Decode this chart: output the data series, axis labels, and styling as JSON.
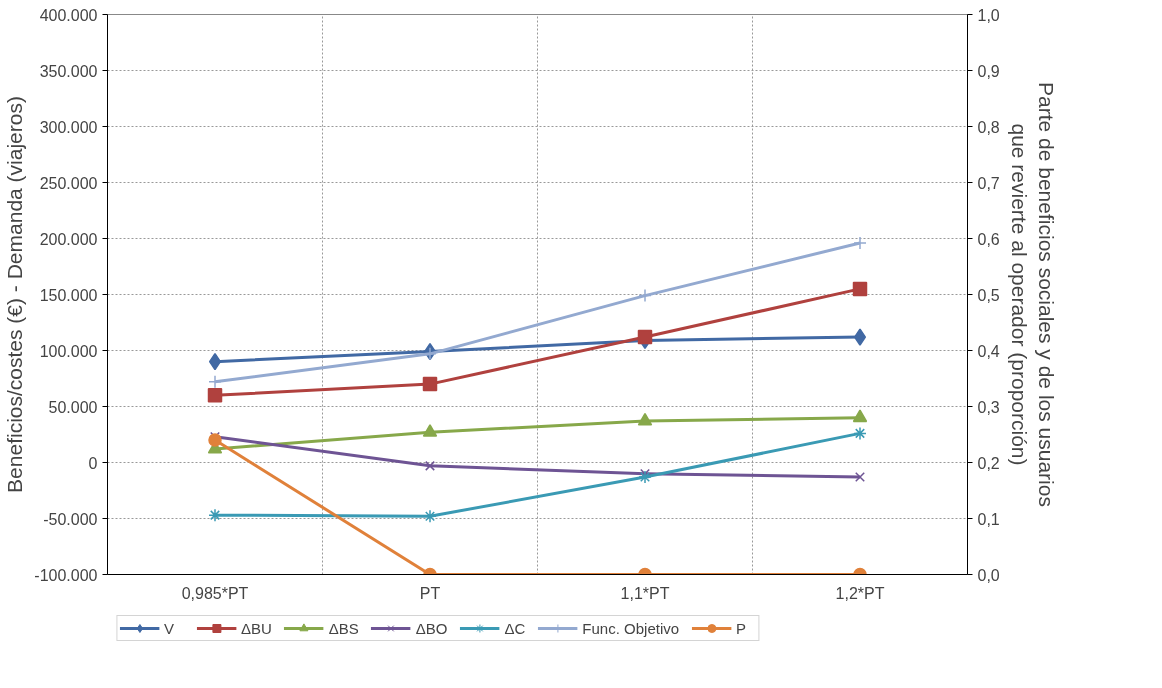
{
  "chart_data": {
    "type": "line",
    "ylabel": "Beneficios/costes (€) - Demanda (viajeros)",
    "y2label": "Parte de beneficios sociales y de los usuarios\nque revierte al operador (proporción)",
    "categories": [
      "0,985*PT",
      "PT",
      "1,1*PT",
      "1,2*PT"
    ],
    "ylim": [
      -100000,
      400000
    ],
    "yticks": [
      {
        "value": -100000,
        "label": "-100.000"
      },
      {
        "value": -50000,
        "label": "-50.000"
      },
      0,
      {
        "value": 50000,
        "label": "50.000"
      },
      {
        "value": 100000,
        "label": "100.000"
      },
      {
        "value": 150000,
        "label": "150.000"
      },
      {
        "value": 200000,
        "label": "200.000"
      },
      {
        "value": 250000,
        "label": "250.000"
      },
      {
        "value": 300000,
        "label": "300.000"
      },
      {
        "value": 350000,
        "label": "350.000"
      },
      {
        "value": 400000,
        "label": "400.000"
      }
    ],
    "y2lim": [
      0,
      1
    ],
    "y2ticks": [
      {
        "value": 0,
        "label": "0,0"
      },
      {
        "value": 0.1,
        "label": "0,1"
      },
      {
        "value": 0.2,
        "label": "0,2"
      },
      {
        "value": 0.3,
        "label": "0,3"
      },
      {
        "value": 0.4,
        "label": "0,4"
      },
      {
        "value": 0.5,
        "label": "0,5"
      },
      {
        "value": 0.6,
        "label": "0,6"
      },
      {
        "value": 0.7,
        "label": "0,7"
      },
      {
        "value": 0.8,
        "label": "0,8"
      },
      {
        "value": 0.9,
        "label": "0,9"
      },
      {
        "value": 1,
        "label": "1,0"
      }
    ],
    "grid": true,
    "legend": "bottom",
    "line_style": "solid",
    "series": [
      {
        "name": "V",
        "color": "#4169a4",
        "marker": "diamond",
        "values": [
          90000,
          99000,
          109000,
          112000
        ]
      },
      {
        "name": "ΔBU",
        "color": "#b0413e",
        "marker": "square",
        "values": [
          60000,
          70000,
          112000,
          155000
        ]
      },
      {
        "name": "ΔBS",
        "color": "#87a84a",
        "marker": "triangle",
        "values": [
          12000,
          27000,
          37000,
          40000
        ]
      },
      {
        "name": "ΔBO",
        "color": "#6e5494",
        "marker": "x",
        "values": [
          23000,
          -3000,
          -10000,
          -13000
        ]
      },
      {
        "name": "ΔC",
        "color": "#3a9ab4",
        "marker": "cross",
        "values": [
          -47000,
          -48000,
          -13000,
          26000
        ]
      },
      {
        "name": "Func. Objetivo",
        "color": "#93a9d0",
        "marker": "plus",
        "values": [
          72000,
          97000,
          149000,
          196000
        ]
      },
      {
        "name": "P",
        "color": "#e0813a",
        "marker": "circle",
        "axis": "y2",
        "values": [
          0.24,
          0,
          0,
          0
        ]
      }
    ]
  }
}
